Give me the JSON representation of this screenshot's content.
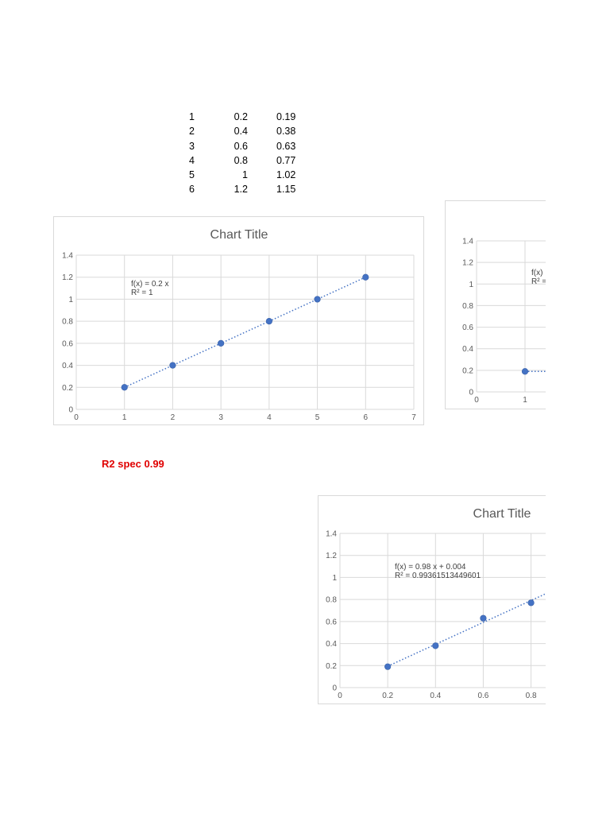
{
  "table": {
    "rows": [
      [
        "1",
        "0.2",
        "0.19"
      ],
      [
        "2",
        "0.4",
        "0.38"
      ],
      [
        "3",
        "0.6",
        "0.63"
      ],
      [
        "4",
        "0.8",
        "0.77"
      ],
      [
        "5",
        "1",
        "1.02"
      ],
      [
        "6",
        "1.2",
        "1.15"
      ]
    ]
  },
  "note": "R2 spec 0.99",
  "colors": {
    "marker": "#4472c4",
    "trendline": "#4472c4",
    "grid": "#d9d9d9",
    "note": "#e00000"
  },
  "chart_data": [
    {
      "type": "scatter",
      "title": "Chart Title",
      "x": [
        1,
        2,
        3,
        4,
        5,
        6
      ],
      "y": [
        0.2,
        0.4,
        0.6,
        0.8,
        1.0,
        1.2
      ],
      "xlim": [
        0,
        7
      ],
      "ylim": [
        0,
        1.4
      ],
      "xticks": [
        "0",
        "1",
        "2",
        "3",
        "4",
        "5",
        "6",
        "7"
      ],
      "yticks": [
        "0",
        "0.2",
        "0.4",
        "0.6",
        "0.8",
        "1",
        "1.2",
        "1.4"
      ],
      "trendline": {
        "type": "linear",
        "equation": "f(x) = 0.2 x",
        "r2": "R² = 1"
      },
      "grid": true
    },
    {
      "type": "scatter",
      "title": "",
      "x": [
        1
      ],
      "y": [
        0.19
      ],
      "xlim": [
        0,
        7
      ],
      "ylim": [
        0,
        1.4
      ],
      "xticks": [
        "0",
        "1"
      ],
      "yticks": [
        "0",
        "0.2",
        "0.4",
        "0.6",
        "0.8",
        "1",
        "1.2",
        "1.4"
      ],
      "trendline": {
        "type": "linear",
        "equation": "f(x)",
        "r2": "R² ="
      },
      "grid": true
    },
    {
      "type": "scatter",
      "title": "Chart Title",
      "x": [
        0.2,
        0.4,
        0.6,
        0.8
      ],
      "y": [
        0.19,
        0.38,
        0.63,
        0.77
      ],
      "xlim": [
        0,
        1.4
      ],
      "ylim": [
        0,
        1.4
      ],
      "xticks": [
        "0",
        "0.2",
        "0.4",
        "0.6",
        "0.8"
      ],
      "yticks": [
        "0",
        "0.2",
        "0.4",
        "0.6",
        "0.8",
        "1",
        "1.2",
        "1.4"
      ],
      "trendline": {
        "type": "linear",
        "equation": "f(x) = 0.98 x + 0.004",
        "r2": "R² = 0.99361513449601"
      },
      "grid": true
    }
  ]
}
